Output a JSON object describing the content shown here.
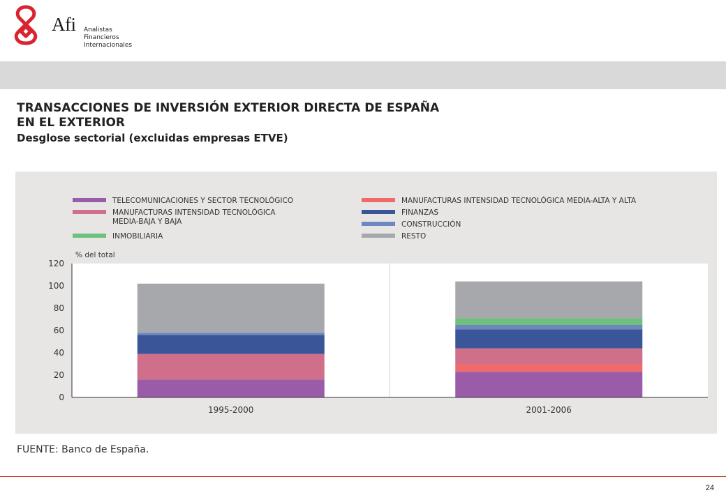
{
  "brand": {
    "name": "Afi",
    "subtitle_lines": [
      "Analistas",
      "Financieros",
      "Internacionales"
    ],
    "accent_color": "#d9232e"
  },
  "header": {
    "title_line1": "TRANSACCIONES DE INVERSIÓN EXTERIOR DIRECTA DE ESPAÑA",
    "title_line2": "EN EL EXTERIOR",
    "subtitle": "Desglose sectorial (excluidas empresas ETVE)"
  },
  "source": "FUENTE: Banco de España.",
  "page_number": "24",
  "chart_data": {
    "type": "bar",
    "stacked": true,
    "ylabel": "% del total",
    "ylim": [
      0,
      120
    ],
    "yticks": [
      0,
      20,
      40,
      60,
      80,
      100,
      120
    ],
    "categories": [
      "1995-2000",
      "2001-2006"
    ],
    "legend_position": "top",
    "grid": false,
    "series": [
      {
        "name": "TELECOMUNICACIONES Y SECTOR TECNOLÓGICO",
        "color": "#9a5ca8",
        "values": [
          16,
          23
        ]
      },
      {
        "name": "MANUFACTURAS INTENSIDAD TECNOLÓGICA MEDIA-ALTA Y ALTA",
        "color": "#ef6b6b",
        "values": [
          0,
          7
        ]
      },
      {
        "name": "MANUFACTURAS INTENSIDAD TECNOLÓGICA MEDIA-BAJA Y BAJA",
        "color": "#cf6f8a",
        "values": [
          23,
          14
        ]
      },
      {
        "name": "FINANZAS",
        "color": "#3a5598",
        "values": [
          17,
          17
        ]
      },
      {
        "name": "CONSTRUCCIÓN",
        "color": "#6f86c1",
        "values": [
          2,
          4
        ]
      },
      {
        "name": "INMOBILIARIA",
        "color": "#6ec07c",
        "values": [
          0,
          6
        ]
      },
      {
        "name": "RESTO",
        "color": "#a7a8ab",
        "values": [
          44,
          33
        ]
      }
    ],
    "legend_layout": [
      {
        "series": 0,
        "lines": [
          "TELECOMUNICACIONES Y SECTOR TECNOLÓGICO"
        ],
        "col": 0,
        "row": 0
      },
      {
        "series": 2,
        "lines": [
          "MANUFACTURAS INTENSIDAD TECNOLÓGICA",
          "MEDIA-BAJA Y BAJA"
        ],
        "col": 0,
        "row": 1
      },
      {
        "series": 5,
        "lines": [
          "INMOBILIARIA"
        ],
        "col": 0,
        "row": 3
      },
      {
        "series": 1,
        "lines": [
          "MANUFACTURAS INTENSIDAD TECNOLÓGICA MEDIA-ALTA Y ALTA"
        ],
        "col": 1,
        "row": 0
      },
      {
        "series": 3,
        "lines": [
          "FINANZAS"
        ],
        "col": 1,
        "row": 1
      },
      {
        "series": 4,
        "lines": [
          "CONSTRUCCIÓN"
        ],
        "col": 1,
        "row": 2
      },
      {
        "series": 6,
        "lines": [
          "RESTO"
        ],
        "col": 1,
        "row": 3
      }
    ]
  }
}
